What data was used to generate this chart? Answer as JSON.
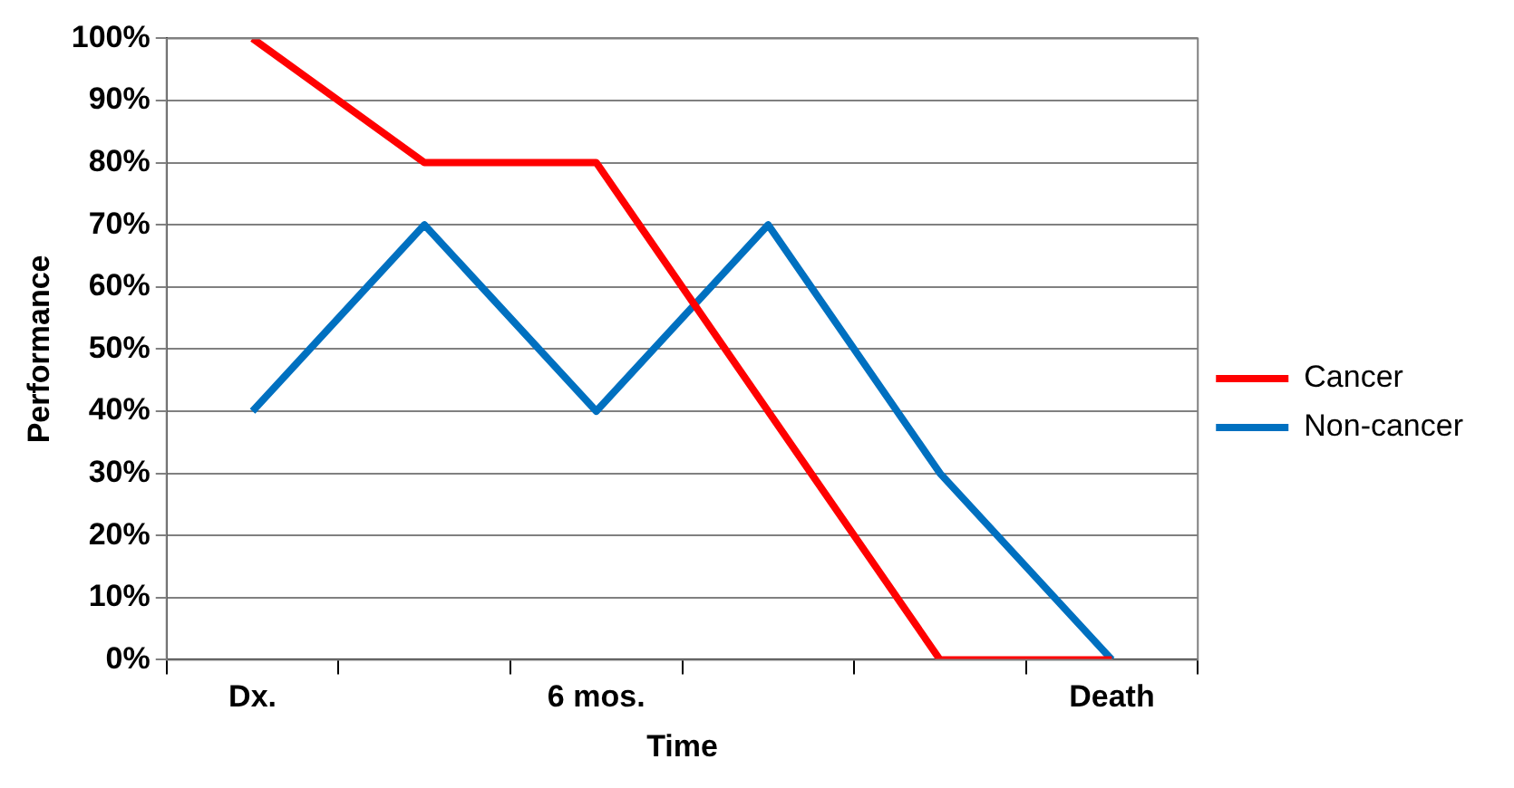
{
  "chart_data": {
    "type": "line",
    "xlabel": "Time",
    "ylabel": "Performance",
    "categories": [
      "Dx.",
      null,
      "6 mos.",
      null,
      null,
      "Death"
    ],
    "series": [
      {
        "name": "Cancer",
        "color": "#ff0000",
        "values": [
          100,
          80,
          80,
          40,
          0,
          0
        ]
      },
      {
        "name": "Non-cancer",
        "color": "#0070c0",
        "values": [
          40,
          70,
          40,
          70,
          30,
          0
        ]
      }
    ],
    "ylim": [
      0,
      100
    ],
    "yticks": [
      {
        "value": 0,
        "label": "0%"
      },
      {
        "value": 10,
        "label": "10%"
      },
      {
        "value": 20,
        "label": "20%"
      },
      {
        "value": 30,
        "label": "30%"
      },
      {
        "value": 40,
        "label": "40%"
      },
      {
        "value": 50,
        "label": "50%"
      },
      {
        "value": 60,
        "label": "60%"
      },
      {
        "value": 70,
        "label": "70%"
      },
      {
        "value": 80,
        "label": "80%"
      },
      {
        "value": 90,
        "label": "90%"
      },
      {
        "value": 100,
        "label": "100%"
      }
    ],
    "grid": "y",
    "legend": "right",
    "marker": "none",
    "line_style": "solid"
  }
}
